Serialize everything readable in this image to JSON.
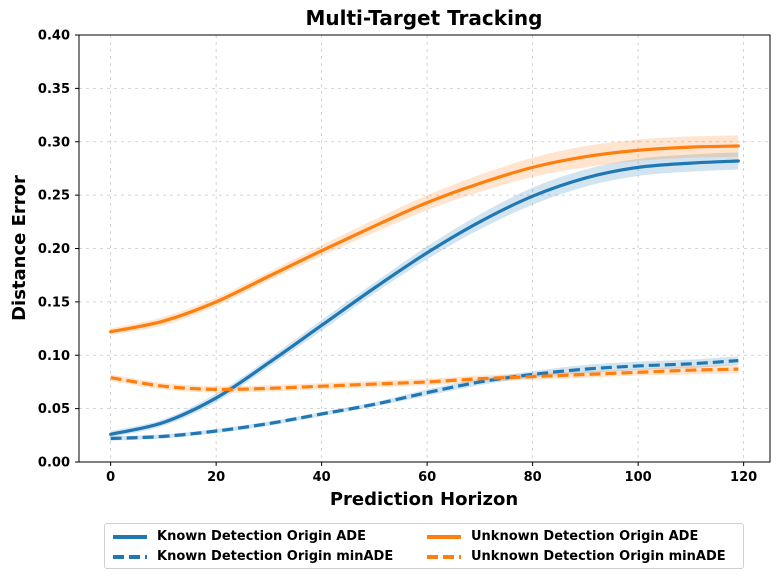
{
  "chart_data": {
    "type": "line",
    "title": "Multi-Target Tracking",
    "xlabel": "Prediction Horizon",
    "ylabel": "Distance Error",
    "xlim": [
      -6,
      125
    ],
    "ylim": [
      0.0,
      0.4
    ],
    "xticks": [
      0,
      20,
      40,
      60,
      80,
      100,
      120
    ],
    "yticks": [
      0.0,
      0.05,
      0.1,
      0.15,
      0.2,
      0.25,
      0.3,
      0.35,
      0.4
    ],
    "xtick_labels": [
      "0",
      "20",
      "40",
      "60",
      "80",
      "100",
      "120"
    ],
    "ytick_labels": [
      "0.00",
      "0.05",
      "0.10",
      "0.15",
      "0.20",
      "0.25",
      "0.30",
      "0.35",
      "0.40"
    ],
    "grid": true,
    "legend_location": "bottom-center",
    "x": [
      0,
      10,
      20,
      30,
      40,
      50,
      60,
      70,
      80,
      90,
      100,
      110,
      119
    ],
    "series": [
      {
        "name": "Known Detection Origin ADE",
        "color": "#1f77b4",
        "style": "solid",
        "values": [
          0.026,
          0.037,
          0.06,
          0.093,
          0.128,
          0.163,
          0.196,
          0.225,
          0.249,
          0.266,
          0.276,
          0.28,
          0.282
        ],
        "band": [
          0.003,
          0.003,
          0.004,
          0.004,
          0.005,
          0.005,
          0.006,
          0.007,
          0.008,
          0.008,
          0.008,
          0.008,
          0.008
        ]
      },
      {
        "name": "Known Detection Origin minADE",
        "color": "#1f77b4",
        "style": "dashed",
        "values": [
          0.022,
          0.024,
          0.029,
          0.036,
          0.045,
          0.054,
          0.065,
          0.075,
          0.082,
          0.087,
          0.09,
          0.092,
          0.095
        ],
        "band": [
          0.002,
          0.002,
          0.002,
          0.002,
          0.002,
          0.002,
          0.003,
          0.003,
          0.003,
          0.004,
          0.004,
          0.004,
          0.004
        ]
      },
      {
        "name": "Unknown Detection Origin ADE",
        "color": "#ff7f0e",
        "style": "solid",
        "values": [
          0.122,
          0.132,
          0.15,
          0.174,
          0.198,
          0.221,
          0.243,
          0.261,
          0.276,
          0.286,
          0.292,
          0.295,
          0.296
        ],
        "band": [
          0.003,
          0.004,
          0.004,
          0.004,
          0.005,
          0.006,
          0.007,
          0.008,
          0.009,
          0.01,
          0.01,
          0.01,
          0.01
        ]
      },
      {
        "name": "Unknown Detection Origin minADE",
        "color": "#ff7f0e",
        "style": "dashed",
        "values": [
          0.079,
          0.071,
          0.068,
          0.069,
          0.071,
          0.073,
          0.075,
          0.078,
          0.08,
          0.082,
          0.084,
          0.086,
          0.087
        ],
        "band": [
          0.003,
          0.003,
          0.003,
          0.003,
          0.003,
          0.003,
          0.003,
          0.003,
          0.003,
          0.003,
          0.003,
          0.004,
          0.004
        ]
      }
    ]
  }
}
